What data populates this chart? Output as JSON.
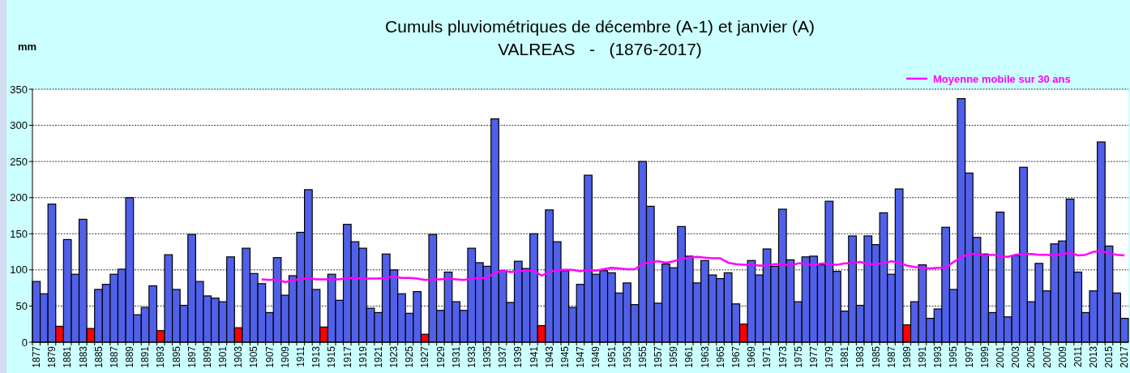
{
  "chart_data": {
    "type": "bar",
    "title": "Cumuls pluviométriques de décembre (A-1) et janvier (A)",
    "subtitle": "VALREAS   -   (1876-2017)",
    "ylabel": "mm",
    "categories": [
      "1877",
      null,
      "1879",
      null,
      "1881",
      null,
      "1883",
      null,
      "1885",
      null,
      "1887",
      null,
      "1889",
      null,
      "1891",
      null,
      "1893",
      null,
      "1895",
      null,
      "1897",
      null,
      "1899",
      null,
      "1901",
      null,
      "1903",
      null,
      "1905",
      null,
      "1907",
      null,
      "1909",
      null,
      "1911",
      null,
      "1913",
      null,
      "1915",
      null,
      "1917",
      null,
      "1919",
      null,
      "1921",
      null,
      "1923",
      null,
      "1925",
      null,
      "1927",
      null,
      "1929",
      null,
      "1931",
      null,
      "1933",
      null,
      "1935",
      null,
      "1937",
      null,
      "1939",
      null,
      "1941",
      null,
      "1943",
      null,
      "1945",
      null,
      "1947",
      null,
      "1949",
      null,
      "1951",
      null,
      "1953",
      null,
      "1955",
      null,
      "1957",
      null,
      "1959",
      null,
      "1961",
      null,
      "1963",
      null,
      "1965",
      null,
      "1967",
      null,
      "1969",
      null,
      "1971",
      null,
      "1973",
      null,
      "1975",
      null,
      "1977",
      null,
      "1979",
      null,
      "1981",
      null,
      "1983",
      null,
      "1985",
      null,
      "1987",
      null,
      "1989",
      null,
      "1991",
      null,
      "1993",
      null,
      "1995",
      null,
      "1997",
      null,
      "1999",
      null,
      "2001",
      null,
      "2003",
      null,
      "2005",
      null,
      "2007",
      null,
      "2009",
      null,
      "2011",
      null,
      "2013",
      null,
      "2015",
      null,
      "2017"
    ],
    "series": [
      {
        "values": [
          84,
          67,
          191,
          22,
          142,
          94,
          170,
          19,
          73,
          80,
          94,
          101,
          200,
          38,
          48,
          78,
          16,
          121,
          73,
          51,
          149,
          84,
          64,
          61,
          56,
          118,
          20,
          130,
          95,
          81,
          41,
          117,
          65,
          92,
          152,
          211,
          73,
          21,
          94,
          58,
          163,
          139,
          130,
          47,
          41,
          122,
          100,
          67,
          40,
          70,
          11,
          149,
          44,
          97,
          56,
          44,
          130,
          110,
          105,
          309,
          99,
          55,
          112,
          102,
          150,
          23,
          183,
          139,
          99,
          48,
          80,
          231,
          94,
          99,
          96,
          68,
          82,
          52,
          250,
          188,
          54,
          108,
          103,
          160,
          119,
          82,
          113,
          93,
          88,
          96,
          53,
          25,
          113,
          93,
          129,
          105,
          184,
          114,
          56,
          118,
          119,
          107,
          195,
          98,
          43,
          147,
          51,
          147,
          135,
          179,
          94,
          212,
          24,
          56,
          107,
          33,
          46,
          159,
          73,
          337,
          234,
          145,
          122,
          41,
          180,
          35,
          120,
          242,
          56,
          109,
          71,
          136,
          140,
          198,
          97,
          41,
          71,
          277,
          133,
          68,
          33
        ],
        "colors": [
          "#5060e8",
          "#5060e8",
          "#5060e8",
          "#ff0000",
          "#5060e8",
          "#5060e8",
          "#5060e8",
          "#ff0000",
          "#5060e8",
          "#5060e8",
          "#5060e8",
          "#5060e8",
          "#5060e8",
          "#5060e8",
          "#5060e8",
          "#5060e8",
          "#ff0000",
          "#5060e8",
          "#5060e8",
          "#5060e8",
          "#5060e8",
          "#5060e8",
          "#5060e8",
          "#5060e8",
          "#5060e8",
          "#5060e8",
          "#ff0000",
          "#5060e8",
          "#5060e8",
          "#5060e8",
          "#5060e8",
          "#5060e8",
          "#5060e8",
          "#5060e8",
          "#5060e8",
          "#5060e8",
          "#5060e8",
          "#ff0000",
          "#5060e8",
          "#5060e8",
          "#5060e8",
          "#5060e8",
          "#5060e8",
          "#5060e8",
          "#5060e8",
          "#5060e8",
          "#5060e8",
          "#5060e8",
          "#5060e8",
          "#5060e8",
          "#ff0000",
          "#5060e8",
          "#5060e8",
          "#5060e8",
          "#5060e8",
          "#5060e8",
          "#5060e8",
          "#5060e8",
          "#5060e8",
          "#5060e8",
          "#5060e8",
          "#5060e8",
          "#5060e8",
          "#5060e8",
          "#5060e8",
          "#ff0000",
          "#5060e8",
          "#5060e8",
          "#5060e8",
          "#5060e8",
          "#5060e8",
          "#5060e8",
          "#5060e8",
          "#5060e8",
          "#5060e8",
          "#5060e8",
          "#5060e8",
          "#5060e8",
          "#5060e8",
          "#5060e8",
          "#5060e8",
          "#5060e8",
          "#5060e8",
          "#5060e8",
          "#5060e8",
          "#5060e8",
          "#5060e8",
          "#5060e8",
          "#5060e8",
          "#5060e8",
          "#5060e8",
          "#ff0000",
          "#5060e8",
          "#5060e8",
          "#5060e8",
          "#5060e8",
          "#5060e8",
          "#5060e8",
          "#5060e8",
          "#5060e8",
          "#5060e8",
          "#5060e8",
          "#5060e8",
          "#5060e8",
          "#5060e8",
          "#5060e8",
          "#5060e8",
          "#5060e8",
          "#5060e8",
          "#5060e8",
          "#5060e8",
          "#5060e8",
          "#ff0000",
          "#5060e8",
          "#5060e8",
          "#5060e8",
          "#5060e8",
          "#5060e8",
          "#5060e8",
          "#5060e8",
          "#5060e8",
          "#5060e8",
          "#5060e8",
          "#5060e8",
          "#5060e8",
          "#5060e8",
          "#5060e8",
          "#5060e8",
          "#5060e8",
          "#5060e8",
          "#5060e8",
          "#5060e8",
          "#5060e8",
          "#5060e8",
          "#5060e8",
          "#5060e8",
          "#5060e8",
          "#5060e8",
          "#5060e8",
          "#5060e8",
          "#5060e8"
        ]
      },
      {
        "type": "line",
        "name": "Moyenne mobile sur 30 ans",
        "color": "#ff00ff",
        "values": [
          null,
          null,
          null,
          null,
          null,
          null,
          null,
          null,
          null,
          null,
          null,
          null,
          null,
          null,
          null,
          null,
          null,
          null,
          null,
          null,
          null,
          null,
          null,
          null,
          null,
          null,
          null,
          null,
          null,
          87,
          86,
          87,
          83,
          86,
          87,
          89,
          87,
          87,
          87,
          87,
          89,
          89,
          88,
          88,
          88,
          89,
          91,
          89,
          89,
          88,
          86,
          87,
          87,
          88,
          87,
          86,
          88,
          89,
          89,
          96,
          99,
          97,
          98,
          99,
          99,
          92,
          97,
          100,
          100,
          100,
          98,
          100,
          99,
          101,
          103,
          102,
          101,
          101,
          108,
          111,
          112,
          110,
          112,
          115,
          117,
          118,
          117,
          116,
          116,
          110,
          108,
          107,
          107,
          106,
          106,
          108,
          108,
          106,
          109,
          109,
          106,
          109,
          108,
          107,
          109,
          109,
          111,
          108,
          108,
          109,
          112,
          110,
          106,
          104,
          103,
          102,
          103,
          103,
          111,
          117,
          122,
          122,
          120,
          121,
          119,
          118,
          121,
          122,
          122,
          121,
          121,
          120,
          122,
          124,
          120,
          121,
          125,
          126,
          123,
          121,
          120
        ]
      }
    ],
    "ylim": [
      0,
      350
    ],
    "yticks": [
      0,
      50,
      100,
      150,
      200,
      250,
      300,
      350
    ],
    "grid": "y",
    "legend": "top right"
  }
}
